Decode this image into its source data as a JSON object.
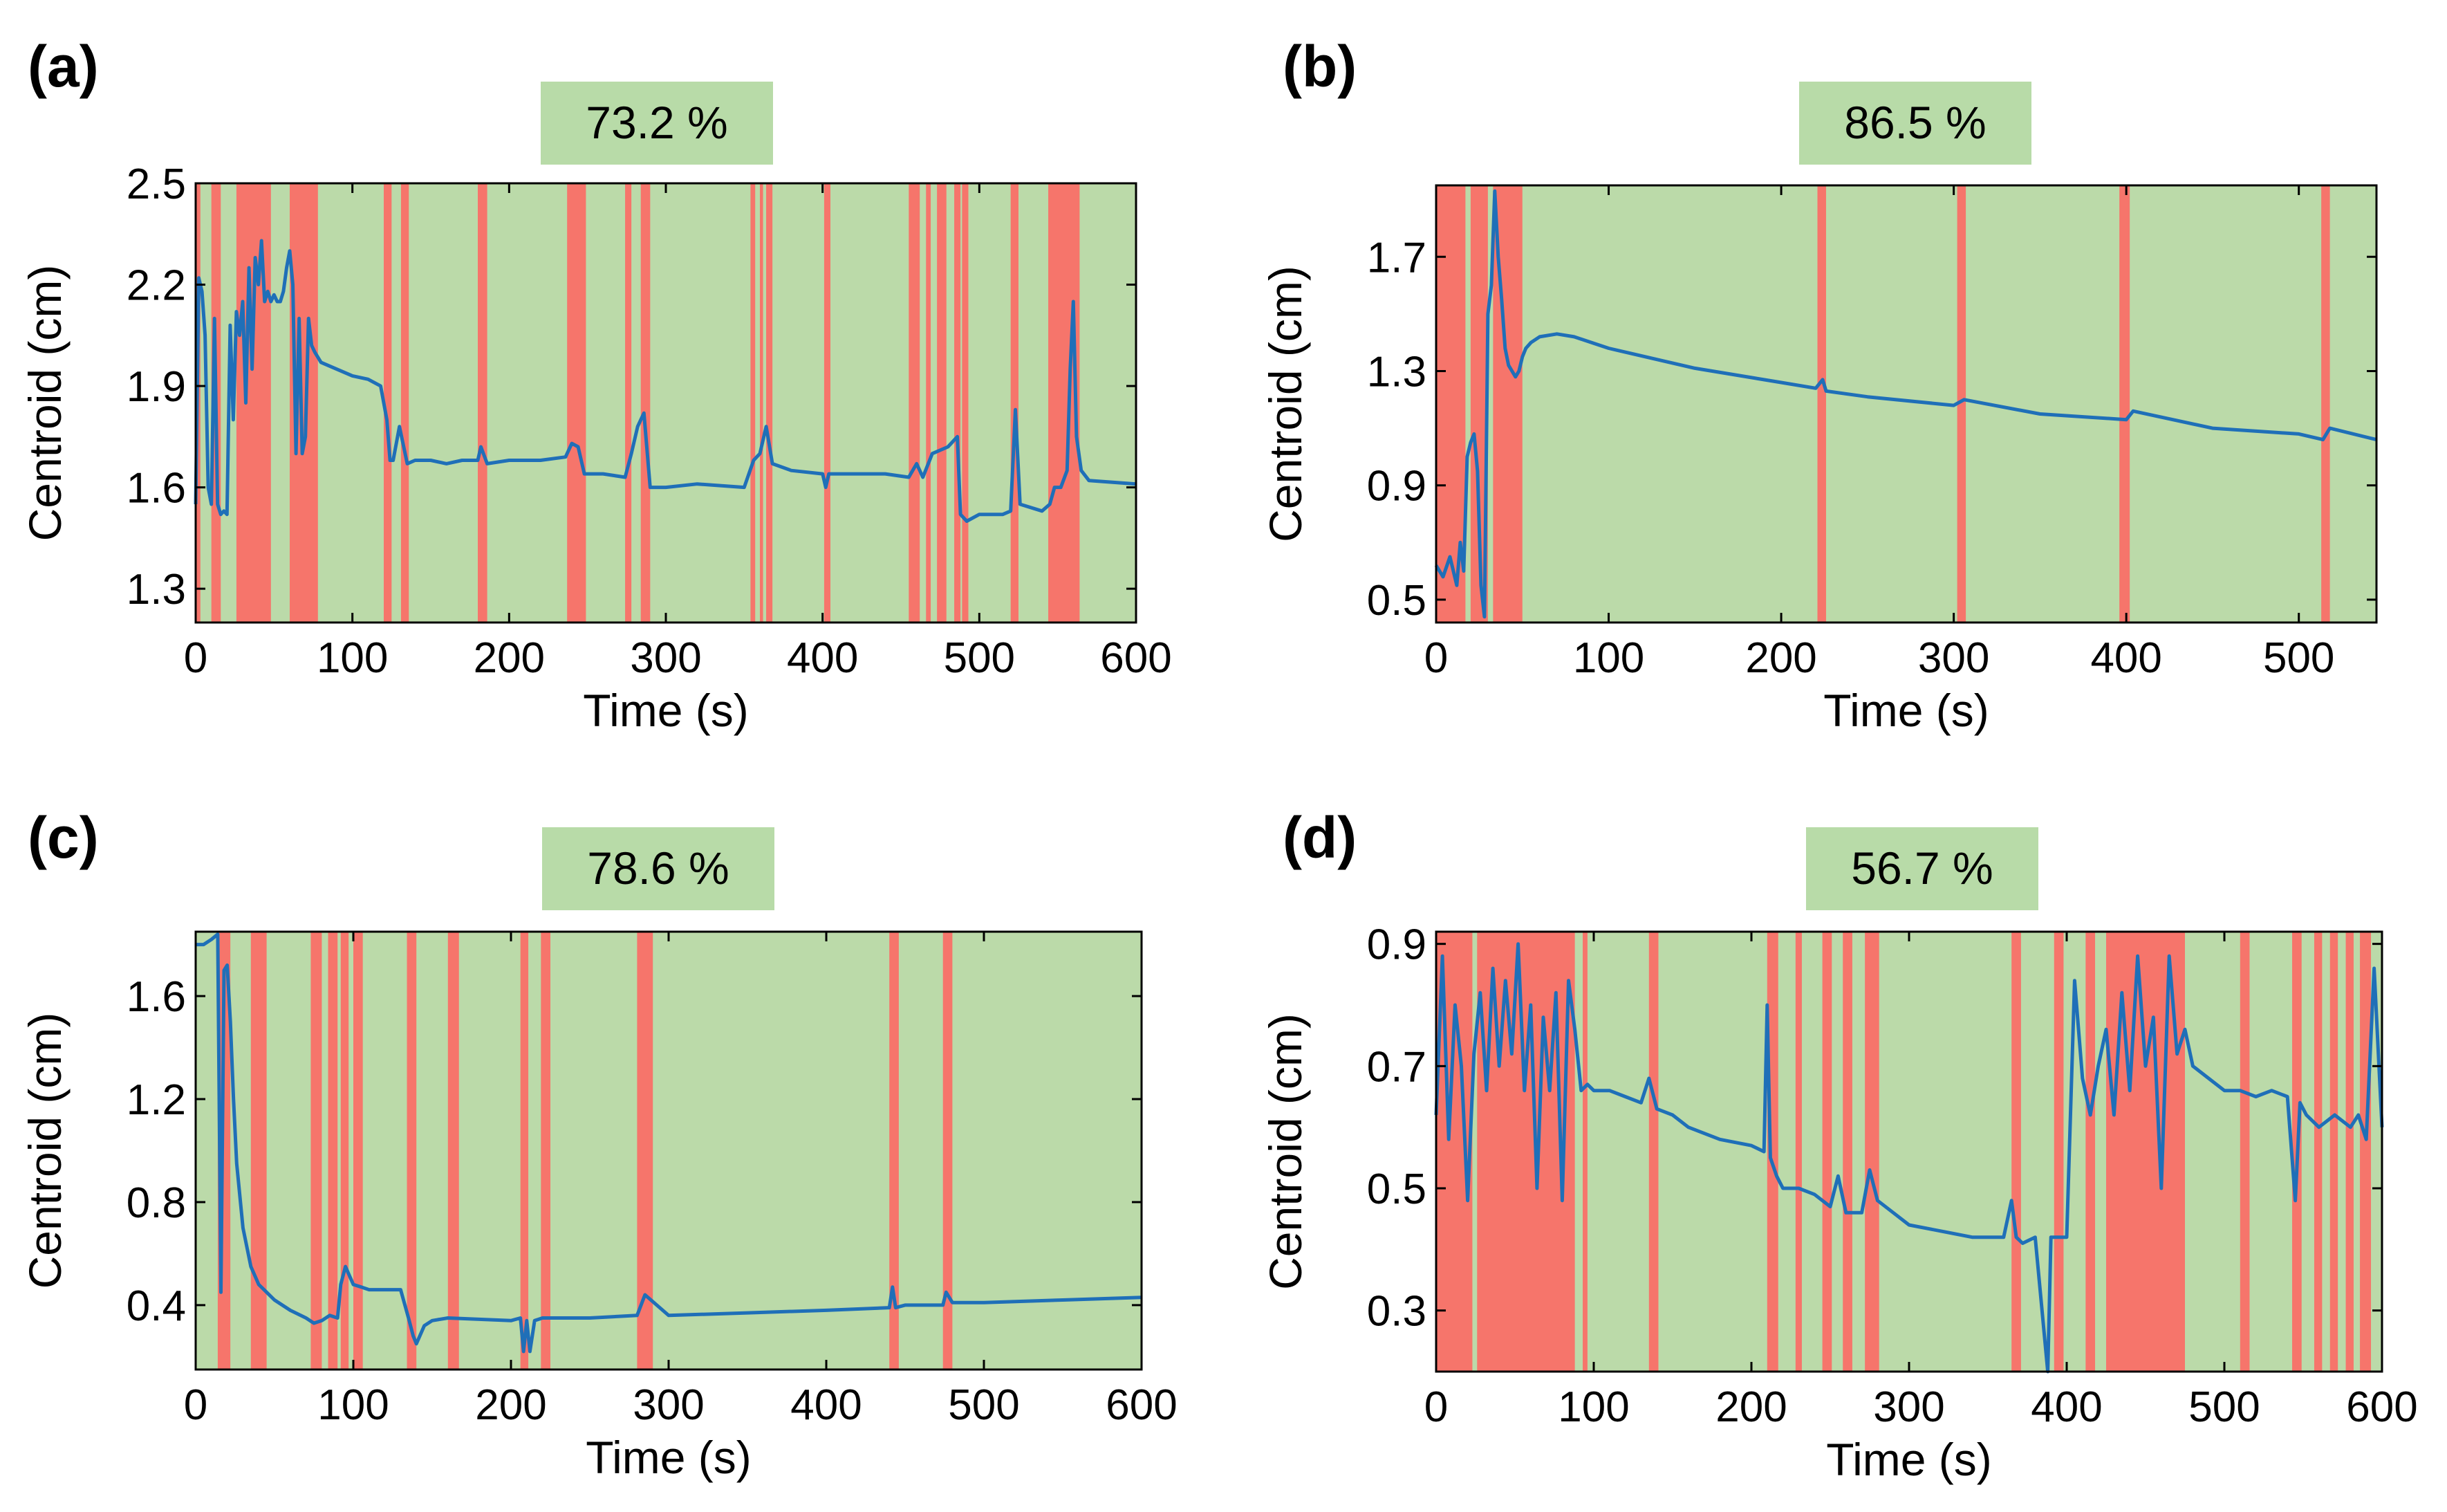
{
  "colors": {
    "good": "#bbdaa9",
    "bad": "#f6756b",
    "line": "#1f6fb8",
    "badge": "#b8dba8",
    "frame": "#000000"
  },
  "chart_data": [
    {
      "panel_label": "(a)",
      "type": "line",
      "badge": "73.2 %",
      "xlabel": "Time (s)",
      "ylabel": "Centroid (cm)",
      "xlim": [
        0,
        600
      ],
      "ylim": [
        1.2,
        2.5
      ],
      "xticks": [
        0,
        100,
        200,
        300,
        400,
        500,
        600
      ],
      "xtick_labels": [
        "0",
        "100",
        "200",
        "300",
        "400",
        "500",
        "600"
      ],
      "yticks": [
        1.3,
        1.6,
        1.9,
        2.2,
        2.5
      ],
      "ytick_labels": [
        "1.3",
        "1.6",
        "1.9",
        "2.2",
        "2.5"
      ],
      "red_intervals": [
        [
          0,
          3
        ],
        [
          10,
          16
        ],
        [
          26,
          48
        ],
        [
          60,
          78
        ],
        [
          120,
          125
        ],
        [
          131,
          136
        ],
        [
          180,
          186
        ],
        [
          237,
          249
        ],
        [
          274,
          278
        ],
        [
          284,
          290
        ],
        [
          354,
          357
        ],
        [
          360,
          362
        ],
        [
          364,
          368
        ],
        [
          401,
          405
        ],
        [
          455,
          462
        ],
        [
          466,
          469
        ],
        [
          473,
          479
        ],
        [
          484,
          488
        ],
        [
          489,
          493
        ],
        [
          520,
          525
        ],
        [
          544,
          564
        ]
      ],
      "series": [
        {
          "name": "centroid",
          "x": [
            0,
            2,
            4,
            6,
            8,
            10,
            12,
            14,
            16,
            18,
            20,
            22,
            24,
            26,
            28,
            30,
            32,
            34,
            36,
            38,
            40,
            42,
            44,
            46,
            48,
            50,
            52,
            54,
            56,
            58,
            60,
            62,
            64,
            66,
            68,
            70,
            72,
            74,
            76,
            80,
            90,
            100,
            110,
            118,
            122,
            124,
            126,
            130,
            135,
            140,
            150,
            160,
            170,
            180,
            182,
            186,
            200,
            220,
            236,
            240,
            244,
            248,
            260,
            274,
            278,
            282,
            286,
            290,
            300,
            320,
            350,
            356,
            360,
            364,
            368,
            380,
            400,
            402,
            404,
            420,
            440,
            455,
            460,
            464,
            470,
            480,
            486,
            488,
            492,
            500,
            515,
            520,
            523,
            526,
            540,
            545,
            548,
            552,
            556,
            558,
            560,
            562,
            565,
            570,
            600
          ],
          "y": [
            1.55,
            2.22,
            2.18,
            2.05,
            1.6,
            1.55,
            2.1,
            1.55,
            1.52,
            1.53,
            1.52,
            2.08,
            1.8,
            2.12,
            2.05,
            2.15,
            1.85,
            2.25,
            1.95,
            2.28,
            2.2,
            2.33,
            2.15,
            2.18,
            2.15,
            2.17,
            2.15,
            2.15,
            2.18,
            2.25,
            2.3,
            2.2,
            1.7,
            2.1,
            1.7,
            1.75,
            2.1,
            2.02,
            2.0,
            1.97,
            1.95,
            1.93,
            1.92,
            1.9,
            1.8,
            1.68,
            1.68,
            1.78,
            1.67,
            1.68,
            1.68,
            1.67,
            1.68,
            1.68,
            1.72,
            1.67,
            1.68,
            1.68,
            1.69,
            1.73,
            1.72,
            1.64,
            1.64,
            1.63,
            1.7,
            1.78,
            1.82,
            1.6,
            1.6,
            1.61,
            1.6,
            1.68,
            1.7,
            1.78,
            1.67,
            1.65,
            1.64,
            1.6,
            1.64,
            1.64,
            1.64,
            1.63,
            1.67,
            1.63,
            1.7,
            1.72,
            1.75,
            1.52,
            1.5,
            1.52,
            1.52,
            1.53,
            1.83,
            1.55,
            1.53,
            1.55,
            1.6,
            1.6,
            1.65,
            1.95,
            2.15,
            1.75,
            1.65,
            1.62,
            1.61
          ]
        }
      ]
    },
    {
      "panel_label": "(b)",
      "type": "line",
      "badge": "86.5 %",
      "xlabel": "Time (s)",
      "ylabel": "Centroid (cm)",
      "xlim": [
        0,
        545
      ],
      "ylim": [
        0.42,
        1.95
      ],
      "xticks": [
        0,
        100,
        200,
        300,
        400,
        500
      ],
      "xtick_labels": [
        "0",
        "100",
        "200",
        "300",
        "400",
        "500"
      ],
      "yticks": [
        0.5,
        0.9,
        1.3,
        1.7
      ],
      "ytick_labels": [
        "0.5",
        "0.9",
        "1.3",
        "1.7"
      ],
      "red_intervals": [
        [
          0,
          17
        ],
        [
          20,
          30
        ],
        [
          33,
          50
        ],
        [
          221,
          226
        ],
        [
          302,
          307
        ],
        [
          396,
          402
        ],
        [
          513,
          518
        ]
      ],
      "series": [
        {
          "name": "centroid",
          "x": [
            0,
            4,
            8,
            12,
            14,
            16,
            18,
            20,
            22,
            24,
            26,
            28,
            30,
            32,
            34,
            36,
            38,
            40,
            42,
            44,
            46,
            48,
            50,
            52,
            55,
            60,
            70,
            80,
            100,
            150,
            200,
            220,
            224,
            226,
            250,
            300,
            306,
            350,
            400,
            404,
            450,
            500,
            514,
            518,
            545
          ],
          "y": [
            0.62,
            0.58,
            0.65,
            0.55,
            0.7,
            0.6,
            1.0,
            1.05,
            1.08,
            0.95,
            0.55,
            0.44,
            1.5,
            1.6,
            1.93,
            1.7,
            1.55,
            1.38,
            1.32,
            1.3,
            1.28,
            1.3,
            1.35,
            1.38,
            1.4,
            1.42,
            1.43,
            1.42,
            1.38,
            1.31,
            1.26,
            1.24,
            1.27,
            1.23,
            1.21,
            1.18,
            1.2,
            1.15,
            1.13,
            1.16,
            1.1,
            1.08,
            1.06,
            1.1,
            1.06
          ]
        }
      ]
    },
    {
      "panel_label": "(c)",
      "type": "line",
      "badge": "78.6 %",
      "xlabel": "Time (s)",
      "ylabel": "Centroid (cm)",
      "xlim": [
        0,
        600
      ],
      "ylim": [
        0.15,
        1.85
      ],
      "xticks": [
        0,
        100,
        200,
        300,
        400,
        500,
        600
      ],
      "xtick_labels": [
        "0",
        "100",
        "200",
        "300",
        "400",
        "500",
        "600"
      ],
      "yticks": [
        0.4,
        0.8,
        1.2,
        1.6
      ],
      "ytick_labels": [
        "0.4",
        "0.8",
        "1.2",
        "1.6"
      ],
      "red_intervals": [
        [
          14,
          22
        ],
        [
          35,
          45
        ],
        [
          73,
          80
        ],
        [
          84,
          90
        ],
        [
          92,
          97
        ],
        [
          100,
          106
        ],
        [
          134,
          140
        ],
        [
          160,
          167
        ],
        [
          206,
          211
        ],
        [
          219,
          225
        ],
        [
          280,
          290
        ],
        [
          440,
          446
        ],
        [
          474,
          480
        ]
      ],
      "series": [
        {
          "name": "centroid",
          "x": [
            0,
            5,
            10,
            14,
            16,
            18,
            20,
            22,
            24,
            26,
            30,
            35,
            40,
            45,
            50,
            60,
            70,
            75,
            80,
            85,
            90,
            92,
            95,
            100,
            105,
            110,
            120,
            130,
            135,
            138,
            140,
            145,
            150,
            160,
            200,
            206,
            208,
            210,
            212,
            215,
            220,
            250,
            280,
            285,
            300,
            350,
            400,
            440,
            442,
            444,
            450,
            474,
            476,
            480,
            500,
            550,
            600
          ],
          "y": [
            1.8,
            1.8,
            1.82,
            1.84,
            0.45,
            1.7,
            1.72,
            1.5,
            1.2,
            0.95,
            0.7,
            0.55,
            0.48,
            0.45,
            0.42,
            0.38,
            0.35,
            0.33,
            0.34,
            0.36,
            0.35,
            0.48,
            0.55,
            0.48,
            0.47,
            0.46,
            0.46,
            0.46,
            0.35,
            0.28,
            0.25,
            0.32,
            0.34,
            0.35,
            0.34,
            0.35,
            0.22,
            0.34,
            0.22,
            0.34,
            0.35,
            0.35,
            0.36,
            0.44,
            0.36,
            0.37,
            0.38,
            0.39,
            0.47,
            0.39,
            0.4,
            0.4,
            0.45,
            0.41,
            0.41,
            0.42,
            0.43
          ]
        }
      ]
    },
    {
      "panel_label": "(d)",
      "type": "line",
      "badge": "56.7 %",
      "xlabel": "Time (s)",
      "ylabel": "Centroid (cm)",
      "xlim": [
        0,
        600
      ],
      "ylim": [
        0.2,
        0.92
      ],
      "xticks": [
        0,
        100,
        200,
        300,
        400,
        500,
        600
      ],
      "xtick_labels": [
        "0",
        "100",
        "200",
        "300",
        "400",
        "500",
        "600"
      ],
      "yticks": [
        0.3,
        0.5,
        0.7,
        0.9
      ],
      "ytick_labels": [
        "0.3",
        "0.5",
        "0.7",
        "0.9"
      ],
      "red_intervals": [
        [
          0,
          23
        ],
        [
          26,
          88
        ],
        [
          93,
          96
        ],
        [
          135,
          141
        ],
        [
          210,
          217
        ],
        [
          228,
          232
        ],
        [
          245,
          251
        ],
        [
          258,
          264
        ],
        [
          272,
          281
        ],
        [
          365,
          371
        ],
        [
          392,
          398
        ],
        [
          412,
          418
        ],
        [
          425,
          475
        ],
        [
          510,
          516
        ],
        [
          543,
          549
        ],
        [
          557,
          562
        ],
        [
          567,
          572
        ],
        [
          577,
          582
        ],
        [
          586,
          593
        ]
      ],
      "series": [
        {
          "name": "centroid",
          "x": [
            0,
            4,
            8,
            12,
            16,
            20,
            24,
            28,
            32,
            36,
            40,
            44,
            48,
            52,
            56,
            60,
            64,
            68,
            72,
            76,
            80,
            84,
            88,
            92,
            96,
            100,
            110,
            120,
            130,
            135,
            140,
            150,
            160,
            180,
            200,
            208,
            210,
            212,
            216,
            220,
            230,
            240,
            250,
            255,
            260,
            270,
            275,
            280,
            290,
            300,
            320,
            340,
            360,
            365,
            368,
            372,
            380,
            388,
            390,
            392,
            395,
            400,
            405,
            410,
            415,
            420,
            425,
            430,
            435,
            440,
            445,
            450,
            455,
            460,
            465,
            470,
            475,
            480,
            490,
            500,
            510,
            520,
            530,
            540,
            545,
            548,
            552,
            560,
            570,
            580,
            585,
            590,
            595,
            600
          ],
          "y": [
            0.62,
            0.88,
            0.58,
            0.8,
            0.7,
            0.48,
            0.72,
            0.82,
            0.66,
            0.86,
            0.7,
            0.84,
            0.72,
            0.9,
            0.66,
            0.8,
            0.5,
            0.78,
            0.66,
            0.82,
            0.48,
            0.84,
            0.76,
            0.66,
            0.67,
            0.66,
            0.66,
            0.65,
            0.64,
            0.68,
            0.63,
            0.62,
            0.6,
            0.58,
            0.57,
            0.56,
            0.8,
            0.55,
            0.52,
            0.5,
            0.5,
            0.49,
            0.47,
            0.52,
            0.46,
            0.46,
            0.53,
            0.48,
            0.46,
            0.44,
            0.43,
            0.42,
            0.42,
            0.48,
            0.42,
            0.41,
            0.42,
            0.2,
            0.42,
            0.42,
            0.42,
            0.42,
            0.84,
            0.68,
            0.62,
            0.7,
            0.76,
            0.62,
            0.82,
            0.66,
            0.88,
            0.7,
            0.78,
            0.5,
            0.88,
            0.72,
            0.76,
            0.7,
            0.68,
            0.66,
            0.66,
            0.65,
            0.66,
            0.65,
            0.48,
            0.64,
            0.62,
            0.6,
            0.62,
            0.6,
            0.62,
            0.58,
            0.86,
            0.6
          ]
        }
      ]
    }
  ]
}
